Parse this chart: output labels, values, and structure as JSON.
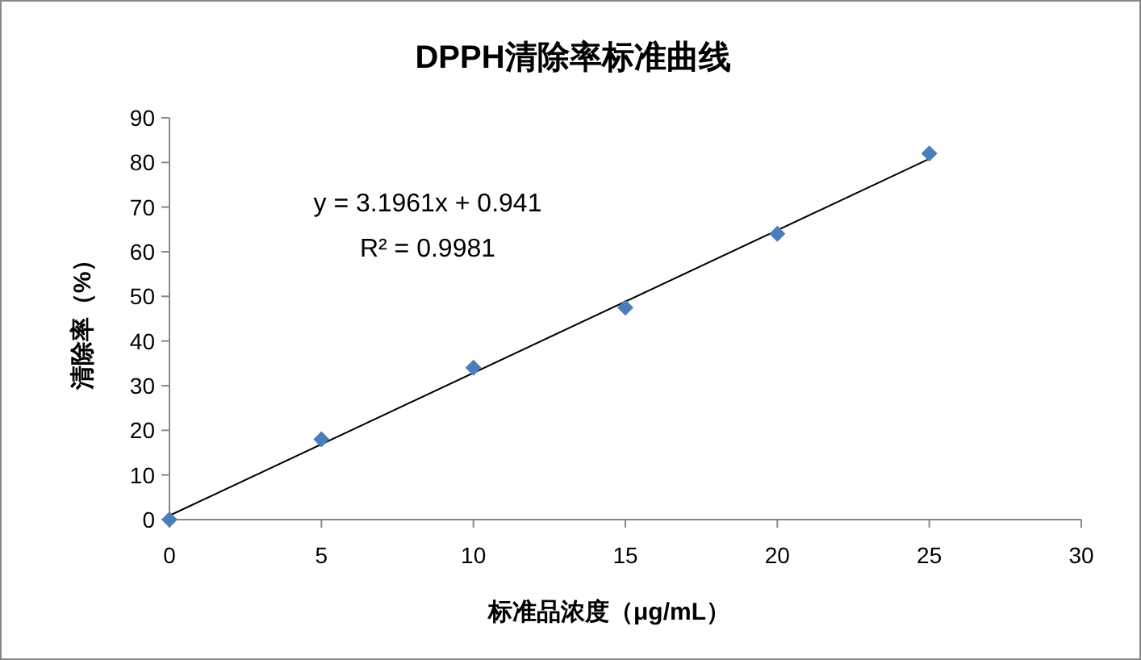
{
  "chart_data": {
    "type": "scatter",
    "title": "DPPH清除率标准曲线",
    "xlabel": "标准品浓度（μg/mL）",
    "ylabel": "清除率（%）",
    "xlim": [
      0,
      30
    ],
    "xticks": [
      0,
      5,
      10,
      15,
      20,
      25,
      30
    ],
    "ylim": [
      0,
      90
    ],
    "yticks": [
      0,
      10,
      20,
      30,
      40,
      50,
      60,
      70,
      80,
      90
    ],
    "grid": false,
    "marker": "diamond",
    "series": [
      {
        "type": "scatter",
        "color": "#4a7ebb",
        "x": [
          0,
          5,
          10,
          15,
          20,
          25
        ],
        "values": [
          0,
          18,
          34,
          47.5,
          64,
          82
        ]
      },
      {
        "type": "line",
        "color": "#000000",
        "line_style": "solid",
        "marker": "none",
        "x": [
          0,
          25
        ],
        "values": [
          0.9,
          80.8
        ]
      }
    ],
    "annotations": [
      "y = 3.1961x + 0.941",
      "R² = 0.9981"
    ]
  }
}
